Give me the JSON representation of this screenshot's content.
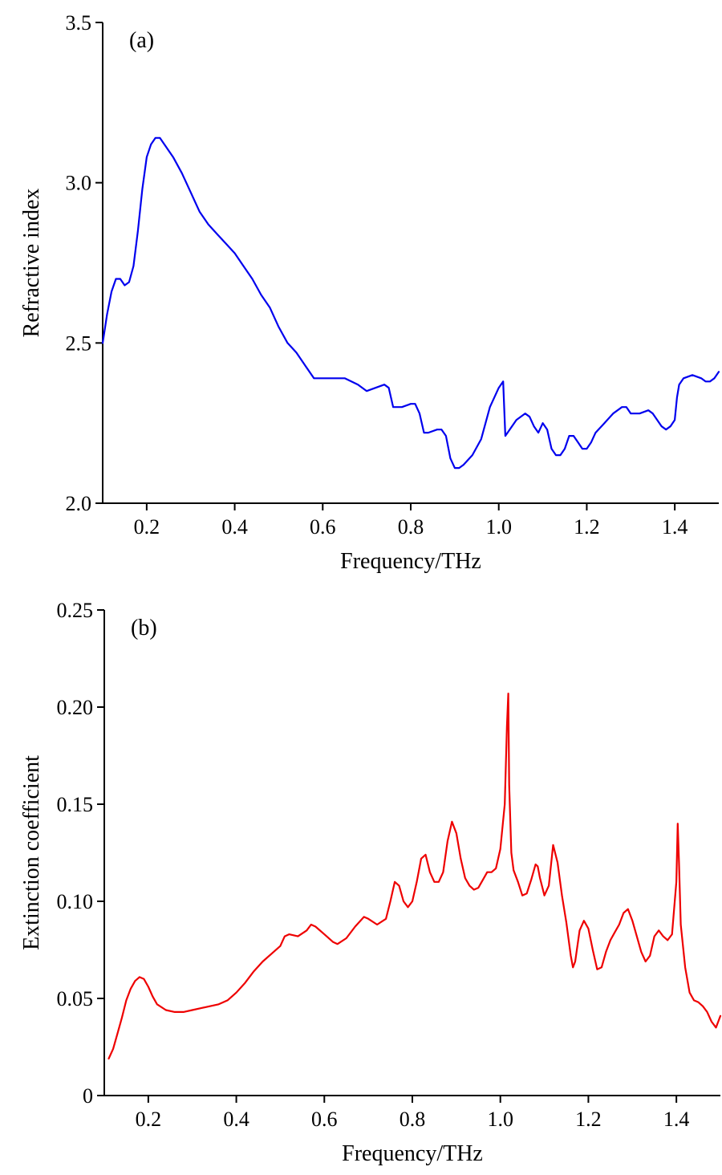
{
  "chart_data": [
    {
      "type": "line",
      "panel_label": "(a)",
      "xlabel": "Frequency/THz",
      "ylabel": "Refractive index",
      "xlim": [
        0.1,
        1.5
      ],
      "ylim": [
        2.0,
        3.5
      ],
      "x_ticks": [
        "0.2",
        "0.4",
        "0.6",
        "0.8",
        "1.0",
        "1.2",
        "1.4"
      ],
      "y_ticks": [
        "2.0",
        "2.5",
        "3.0",
        "3.5"
      ],
      "grid": false,
      "series": [
        {
          "color": "#0000ee",
          "x": [
            0.1,
            0.11,
            0.12,
            0.13,
            0.14,
            0.15,
            0.16,
            0.17,
            0.18,
            0.19,
            0.2,
            0.21,
            0.22,
            0.23,
            0.24,
            0.26,
            0.28,
            0.3,
            0.32,
            0.34,
            0.36,
            0.38,
            0.4,
            0.42,
            0.44,
            0.46,
            0.48,
            0.5,
            0.52,
            0.54,
            0.56,
            0.58,
            0.6,
            0.62,
            0.65,
            0.68,
            0.7,
            0.72,
            0.74,
            0.75,
            0.76,
            0.78,
            0.8,
            0.81,
            0.82,
            0.83,
            0.84,
            0.86,
            0.87,
            0.88,
            0.89,
            0.9,
            0.91,
            0.92,
            0.94,
            0.96,
            0.98,
            1.0,
            1.01,
            1.015,
            1.02,
            1.04,
            1.06,
            1.07,
            1.08,
            1.09,
            1.1,
            1.11,
            1.12,
            1.13,
            1.14,
            1.15,
            1.16,
            1.17,
            1.18,
            1.19,
            1.2,
            1.21,
            1.22,
            1.24,
            1.26,
            1.28,
            1.29,
            1.3,
            1.32,
            1.34,
            1.35,
            1.36,
            1.37,
            1.38,
            1.39,
            1.4,
            1.405,
            1.41,
            1.42,
            1.44,
            1.46,
            1.47,
            1.48,
            1.49,
            1.5
          ],
          "y": [
            2.5,
            2.59,
            2.66,
            2.7,
            2.7,
            2.68,
            2.69,
            2.74,
            2.85,
            2.98,
            3.08,
            3.12,
            3.14,
            3.14,
            3.12,
            3.08,
            3.03,
            2.97,
            2.91,
            2.87,
            2.84,
            2.81,
            2.78,
            2.74,
            2.7,
            2.65,
            2.61,
            2.55,
            2.5,
            2.47,
            2.43,
            2.39,
            2.39,
            2.39,
            2.39,
            2.37,
            2.35,
            2.36,
            2.37,
            2.36,
            2.3,
            2.3,
            2.31,
            2.31,
            2.28,
            2.22,
            2.22,
            2.23,
            2.23,
            2.21,
            2.14,
            2.11,
            2.11,
            2.12,
            2.15,
            2.2,
            2.3,
            2.36,
            2.38,
            2.21,
            2.22,
            2.26,
            2.28,
            2.27,
            2.24,
            2.22,
            2.25,
            2.23,
            2.17,
            2.15,
            2.15,
            2.17,
            2.21,
            2.21,
            2.19,
            2.17,
            2.17,
            2.19,
            2.22,
            2.25,
            2.28,
            2.3,
            2.3,
            2.28,
            2.28,
            2.29,
            2.28,
            2.26,
            2.24,
            2.23,
            2.24,
            2.26,
            2.33,
            2.37,
            2.39,
            2.4,
            2.39,
            2.38,
            2.38,
            2.39,
            2.41
          ]
        }
      ]
    },
    {
      "type": "line",
      "panel_label": "(b)",
      "xlabel": "Frequency/THz",
      "ylabel": "Extinction coefficient",
      "xlim": [
        0.1,
        1.5
      ],
      "ylim": [
        0,
        0.25
      ],
      "x_ticks": [
        "0.2",
        "0.4",
        "0.6",
        "0.8",
        "1.0",
        "1.2",
        "1.4"
      ],
      "y_ticks": [
        "0",
        "0.05",
        "0.10",
        "0.15",
        "0.20",
        "0.25"
      ],
      "grid": false,
      "series": [
        {
          "color": "#ee0000",
          "x": [
            0.11,
            0.12,
            0.13,
            0.14,
            0.15,
            0.16,
            0.17,
            0.18,
            0.19,
            0.2,
            0.21,
            0.22,
            0.24,
            0.26,
            0.28,
            0.3,
            0.32,
            0.34,
            0.36,
            0.38,
            0.4,
            0.42,
            0.44,
            0.46,
            0.48,
            0.5,
            0.51,
            0.52,
            0.54,
            0.56,
            0.57,
            0.58,
            0.6,
            0.62,
            0.63,
            0.65,
            0.67,
            0.69,
            0.7,
            0.72,
            0.74,
            0.75,
            0.76,
            0.77,
            0.78,
            0.79,
            0.8,
            0.81,
            0.82,
            0.83,
            0.84,
            0.85,
            0.86,
            0.87,
            0.88,
            0.89,
            0.9,
            0.91,
            0.92,
            0.93,
            0.94,
            0.95,
            0.96,
            0.97,
            0.98,
            0.99,
            1.0,
            1.01,
            1.015,
            1.018,
            1.02,
            1.025,
            1.03,
            1.04,
            1.05,
            1.06,
            1.07,
            1.08,
            1.085,
            1.09,
            1.1,
            1.11,
            1.12,
            1.13,
            1.14,
            1.15,
            1.16,
            1.165,
            1.17,
            1.18,
            1.19,
            1.2,
            1.21,
            1.22,
            1.23,
            1.24,
            1.25,
            1.26,
            1.27,
            1.28,
            1.29,
            1.3,
            1.31,
            1.32,
            1.33,
            1.34,
            1.35,
            1.36,
            1.37,
            1.38,
            1.39,
            1.4,
            1.403,
            1.406,
            1.41,
            1.42,
            1.43,
            1.44,
            1.45,
            1.46,
            1.47,
            1.48,
            1.49,
            1.5
          ],
          "y": [
            0.019,
            0.024,
            0.032,
            0.04,
            0.049,
            0.055,
            0.059,
            0.061,
            0.06,
            0.056,
            0.051,
            0.047,
            0.044,
            0.043,
            0.043,
            0.044,
            0.045,
            0.046,
            0.047,
            0.049,
            0.053,
            0.058,
            0.064,
            0.069,
            0.073,
            0.077,
            0.082,
            0.083,
            0.082,
            0.085,
            0.088,
            0.087,
            0.083,
            0.079,
            0.078,
            0.081,
            0.087,
            0.092,
            0.091,
            0.088,
            0.091,
            0.1,
            0.11,
            0.108,
            0.1,
            0.097,
            0.1,
            0.11,
            0.122,
            0.124,
            0.115,
            0.11,
            0.11,
            0.115,
            0.131,
            0.141,
            0.135,
            0.122,
            0.112,
            0.108,
            0.106,
            0.107,
            0.111,
            0.115,
            0.115,
            0.117,
            0.127,
            0.15,
            0.19,
            0.207,
            0.16,
            0.125,
            0.116,
            0.11,
            0.103,
            0.104,
            0.111,
            0.119,
            0.118,
            0.112,
            0.103,
            0.108,
            0.129,
            0.12,
            0.103,
            0.089,
            0.072,
            0.066,
            0.069,
            0.085,
            0.09,
            0.086,
            0.075,
            0.065,
            0.066,
            0.074,
            0.08,
            0.084,
            0.088,
            0.094,
            0.096,
            0.09,
            0.082,
            0.074,
            0.069,
            0.072,
            0.082,
            0.085,
            0.082,
            0.08,
            0.083,
            0.11,
            0.14,
            0.12,
            0.088,
            0.066,
            0.053,
            0.049,
            0.048,
            0.046,
            0.043,
            0.038,
            0.035,
            0.041
          ]
        }
      ]
    }
  ]
}
